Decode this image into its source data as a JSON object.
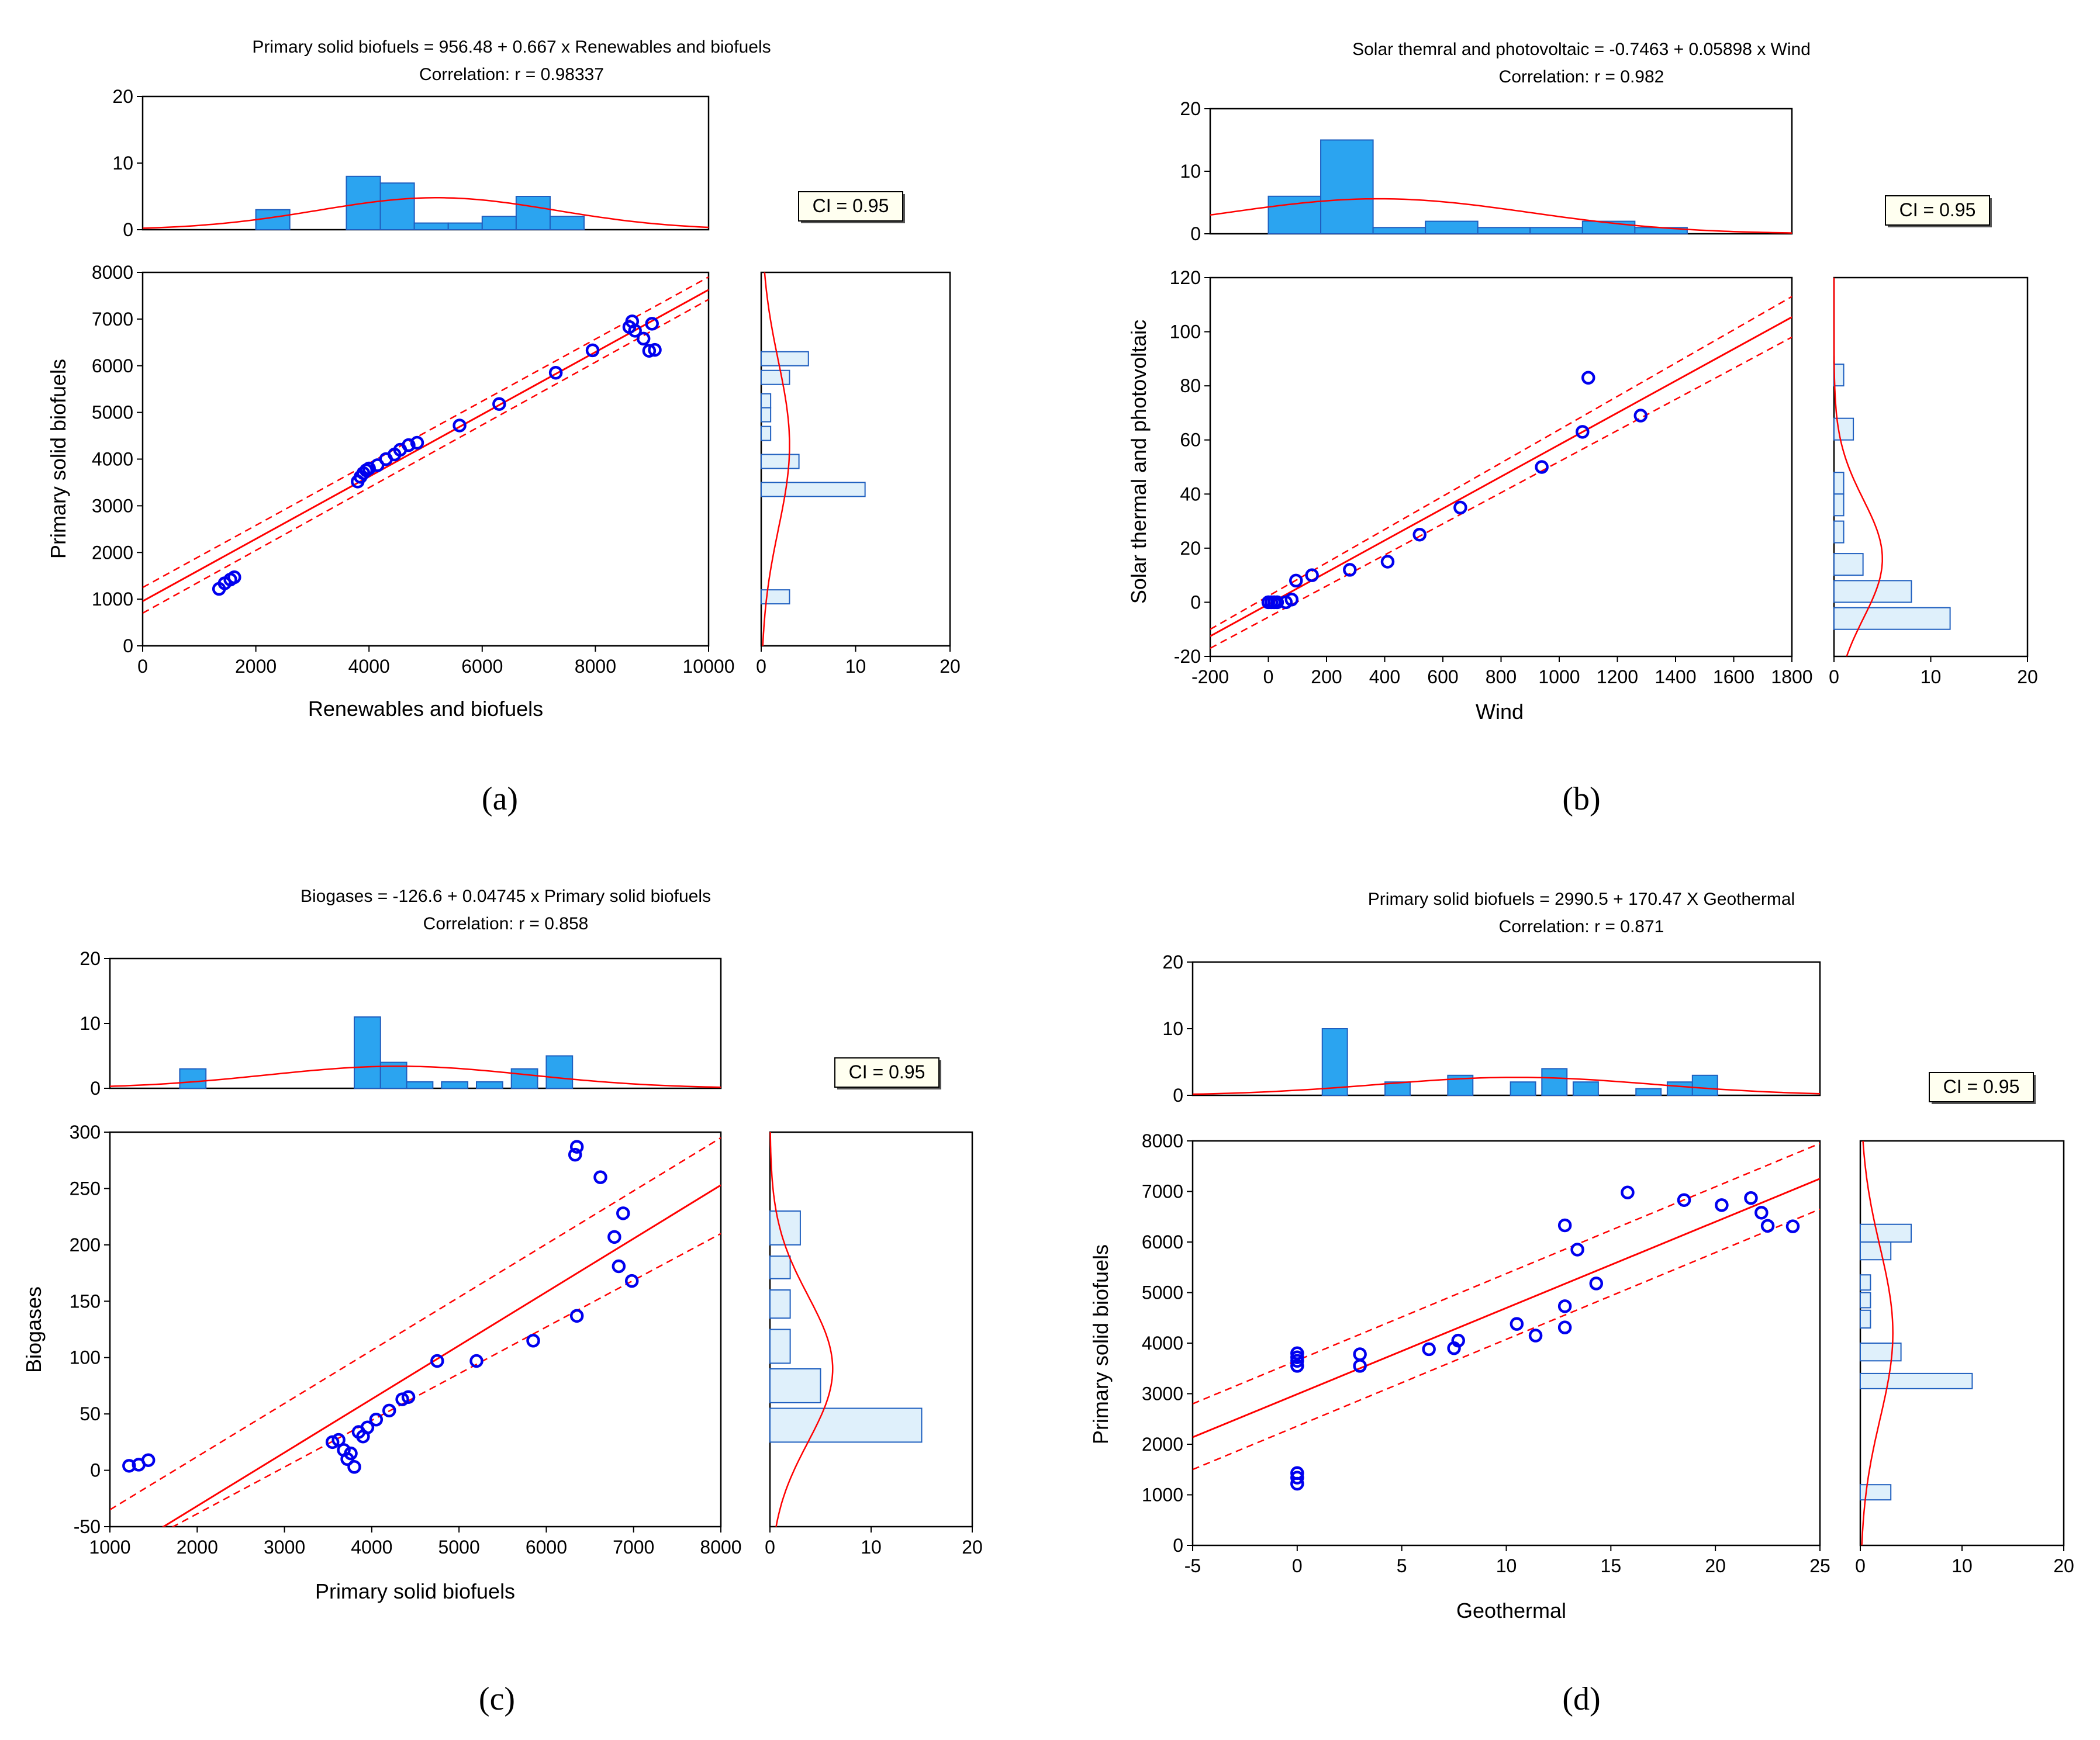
{
  "figure": {
    "colors": {
      "marker": "#0000ee",
      "fit_line": "#ff0000",
      "bar_fill_top": "#2ba4f0",
      "bar_fill_side": "#dff0fb",
      "bar_stroke": "#1f5fbf",
      "axis": "#000000",
      "ci_box_fill": "#fffff0"
    }
  },
  "chart_data": [
    {
      "panel": "(a)",
      "type": "scatter",
      "title": "Primary solid biofuels = 956.48 + 0.667 x Renewables and biofuels",
      "subtitle": "Correlation: r = 0.98337",
      "xlabel": "Renewables and biofuels",
      "ylabel": "Primary solid biofuels",
      "xlim": [
        0,
        10000
      ],
      "ylim": [
        0,
        8000
      ],
      "xticks": [
        0,
        2000,
        4000,
        6000,
        8000,
        10000
      ],
      "yticks": [
        0,
        1000,
        2000,
        3000,
        4000,
        5000,
        6000,
        7000,
        8000
      ],
      "regression": {
        "intercept": 956.48,
        "slope": 0.667,
        "ci_lower": [
          0,
          700
        ],
        "ci_upper": [
          0,
          1250
        ],
        "ci_lower_end": [
          10000,
          7420
        ],
        "ci_upper_end": [
          10000,
          7900
        ]
      },
      "ci_label": "CI = 0.95",
      "points": [
        [
          1350,
          1220
        ],
        [
          1450,
          1340
        ],
        [
          1550,
          1420
        ],
        [
          1620,
          1470
        ],
        [
          3800,
          3520
        ],
        [
          3850,
          3620
        ],
        [
          3900,
          3700
        ],
        [
          3950,
          3760
        ],
        [
          4000,
          3800
        ],
        [
          4150,
          3870
        ],
        [
          4300,
          4000
        ],
        [
          4450,
          4100
        ],
        [
          4550,
          4200
        ],
        [
          4700,
          4300
        ],
        [
          4850,
          4350
        ],
        [
          5600,
          4720
        ],
        [
          6300,
          5180
        ],
        [
          7300,
          5850
        ],
        [
          7950,
          6330
        ],
        [
          8600,
          6830
        ],
        [
          8650,
          6950
        ],
        [
          8700,
          6750
        ],
        [
          8850,
          6580
        ],
        [
          8950,
          6320
        ],
        [
          9050,
          6340
        ],
        [
          9000,
          6900
        ]
      ],
      "top_hist": {
        "yticks": [
          0,
          10,
          20
        ],
        "bins": [
          [
            2000,
            2600,
            3
          ],
          [
            3600,
            4200,
            8
          ],
          [
            4200,
            4800,
            7
          ],
          [
            4800,
            5400,
            1
          ],
          [
            5400,
            6000,
            1
          ],
          [
            6000,
            6600,
            2
          ],
          [
            6600,
            7200,
            5
          ],
          [
            7200,
            7800,
            2
          ]
        ],
        "normal": {
          "mean": 5200,
          "sd": 2100,
          "peak": 4.8
        }
      },
      "side_hist": {
        "xticks": [
          0,
          10,
          20
        ],
        "bins": [
          [
            6000,
            6300,
            5
          ],
          [
            5600,
            5900,
            3
          ],
          [
            5100,
            5400,
            1
          ],
          [
            4800,
            5100,
            1
          ],
          [
            4400,
            4700,
            1
          ],
          [
            3800,
            4100,
            4
          ],
          [
            3200,
            3500,
            11
          ],
          [
            900,
            1200,
            3
          ]
        ],
        "normal": {
          "mean": 4300,
          "sd": 1800,
          "peak": 3.0
        }
      }
    },
    {
      "panel": "(b)",
      "type": "scatter",
      "title": "Solar themral and photovoltaic = -0.7463 + 0.05898 x Wind",
      "subtitle": "Correlation: r = 0.982",
      "xlabel": "Wind",
      "ylabel": "Solar thermal and photovoltaic",
      "xlim": [
        -200,
        1800
      ],
      "ylim": [
        -20,
        120
      ],
      "xticks": [
        -200,
        0,
        200,
        400,
        600,
        800,
        1000,
        1200,
        1400,
        1600,
        1800
      ],
      "yticks": [
        -20,
        0,
        20,
        40,
        60,
        80,
        100,
        120
      ],
      "regression": {
        "intercept": -0.7463,
        "slope": 0.05898,
        "ci_lower": [
          -200,
          -17
        ],
        "ci_upper": [
          -200,
          -10
        ],
        "ci_lower_end": [
          1800,
          98
        ],
        "ci_upper_end": [
          1800,
          113
        ]
      },
      "ci_label": "CI = 0.95",
      "points": [
        [
          0,
          0
        ],
        [
          10,
          0
        ],
        [
          20,
          0
        ],
        [
          30,
          0
        ],
        [
          60,
          0
        ],
        [
          80,
          1
        ],
        [
          95,
          8
        ],
        [
          150,
          10
        ],
        [
          280,
          12
        ],
        [
          410,
          15
        ],
        [
          520,
          25
        ],
        [
          660,
          35
        ],
        [
          940,
          50
        ],
        [
          1080,
          63
        ],
        [
          1100,
          83
        ],
        [
          1280,
          69
        ]
      ],
      "top_hist": {
        "yticks": [
          0,
          10,
          20
        ],
        "bins": [
          [
            0,
            180,
            6
          ],
          [
            180,
            360,
            15
          ],
          [
            360,
            540,
            1
          ],
          [
            540,
            720,
            2
          ],
          [
            720,
            900,
            1
          ],
          [
            900,
            1080,
            1
          ],
          [
            1080,
            1260,
            2
          ],
          [
            1260,
            1440,
            1
          ]
        ],
        "normal": {
          "mean": 380,
          "sd": 520,
          "peak": 5.6
        }
      },
      "side_hist": {
        "xticks": [
          0,
          10,
          20
        ],
        "bins": [
          [
            80,
            88,
            1
          ],
          [
            60,
            68,
            2
          ],
          [
            40,
            48,
            1
          ],
          [
            32,
            40,
            1
          ],
          [
            22,
            30,
            1
          ],
          [
            10,
            18,
            3
          ],
          [
            0,
            8,
            8
          ],
          [
            -10,
            -2,
            12
          ]
        ],
        "normal": {
          "mean": 16,
          "sd": 22,
          "peak": 5.0
        }
      }
    },
    {
      "panel": "(c)",
      "type": "scatter",
      "title": "Biogases = -126.6 + 0.04745 x Primary solid biofuels",
      "subtitle": "Correlation: r = 0.858",
      "xlabel": "Primary solid biofuels",
      "ylabel": "Biogases",
      "xlim": [
        1000,
        8000
      ],
      "ylim": [
        -50,
        300
      ],
      "xticks": [
        1000,
        2000,
        3000,
        4000,
        5000,
        6000,
        7000,
        8000
      ],
      "yticks": [
        -50,
        0,
        50,
        100,
        150,
        200,
        250,
        300
      ],
      "regression": {
        "intercept": -126.6,
        "slope": 0.04745,
        "ci_lower": [
          1000,
          -80
        ],
        "ci_upper": [
          1000,
          -35
        ],
        "ci_lower_end": [
          8000,
          210
        ],
        "ci_upper_end": [
          8000,
          295
        ]
      },
      "ci_label": "CI = 0.95",
      "points": [
        [
          1220,
          4
        ],
        [
          1330,
          5
        ],
        [
          1440,
          9
        ],
        [
          3550,
          25
        ],
        [
          3620,
          27
        ],
        [
          3680,
          18
        ],
        [
          3720,
          10
        ],
        [
          3760,
          15
        ],
        [
          3800,
          3
        ],
        [
          3850,
          34
        ],
        [
          3900,
          30
        ],
        [
          3950,
          38
        ],
        [
          4050,
          45
        ],
        [
          4200,
          53
        ],
        [
          4350,
          63
        ],
        [
          4420,
          65
        ],
        [
          4750,
          97
        ],
        [
          5200,
          97
        ],
        [
          5850,
          115
        ],
        [
          6350,
          137
        ],
        [
          6330,
          280
        ],
        [
          6350,
          287
        ],
        [
          6620,
          260
        ],
        [
          6780,
          207
        ],
        [
          6880,
          228
        ],
        [
          6830,
          181
        ],
        [
          6980,
          168
        ]
      ],
      "top_hist": {
        "yticks": [
          0,
          10,
          20
        ],
        "bins": [
          [
            1800,
            2100,
            3
          ],
          [
            3800,
            4100,
            11
          ],
          [
            4100,
            4400,
            4
          ],
          [
            4400,
            4700,
            1
          ],
          [
            4800,
            5100,
            1
          ],
          [
            5200,
            5500,
            1
          ],
          [
            5600,
            5900,
            3
          ],
          [
            6000,
            6300,
            5
          ]
        ],
        "normal": {
          "mean": 4300,
          "sd": 1500,
          "peak": 3.4
        }
      },
      "side_hist": {
        "xticks": [
          0,
          10,
          20
        ],
        "bins": [
          [
            200,
            230,
            3
          ],
          [
            170,
            190,
            2
          ],
          [
            135,
            160,
            2
          ],
          [
            95,
            125,
            2
          ],
          [
            60,
            90,
            5
          ],
          [
            25,
            55,
            15
          ]
        ],
        "normal": {
          "mean": 90,
          "sd": 65,
          "peak": 6.2
        }
      }
    },
    {
      "panel": "(d)",
      "type": "scatter",
      "title": "Primary solid biofuels = 2990.5 + 170.47 X Geothermal",
      "subtitle": "Correlation: r = 0.871",
      "xlabel": "Geothermal",
      "ylabel": "Primary solid biofuels",
      "xlim": [
        -5,
        25
      ],
      "ylim": [
        0,
        8000
      ],
      "xticks": [
        -5,
        0,
        5,
        10,
        15,
        20,
        25
      ],
      "yticks": [
        0,
        1000,
        2000,
        3000,
        4000,
        5000,
        6000,
        7000,
        8000
      ],
      "regression": {
        "intercept": 2990.5,
        "slope": 170.47,
        "ci_lower": [
          -5,
          1500
        ],
        "ci_upper": [
          -5,
          2800
        ],
        "ci_lower_end": [
          25,
          6650
        ],
        "ci_upper_end": [
          25,
          7950
        ]
      },
      "ci_label": "CI = 0.95",
      "points": [
        [
          0,
          1220
        ],
        [
          0,
          1340
        ],
        [
          0,
          1430
        ],
        [
          0,
          3550
        ],
        [
          0,
          3650
        ],
        [
          0,
          3720
        ],
        [
          0,
          3800
        ],
        [
          3,
          3550
        ],
        [
          3,
          3780
        ],
        [
          6.3,
          3880
        ],
        [
          7.5,
          3900
        ],
        [
          7.7,
          4050
        ],
        [
          10.5,
          4380
        ],
        [
          11.4,
          4150
        ],
        [
          12.8,
          4310
        ],
        [
          12.8,
          4730
        ],
        [
          12.8,
          6330
        ],
        [
          13.4,
          5850
        ],
        [
          14.3,
          5180
        ],
        [
          15.8,
          6980
        ],
        [
          18.5,
          6830
        ],
        [
          20.3,
          6730
        ],
        [
          21.7,
          6870
        ],
        [
          22.2,
          6580
        ],
        [
          22.5,
          6320
        ],
        [
          23.7,
          6310
        ]
      ],
      "top_hist": {
        "yticks": [
          0,
          10,
          20
        ],
        "bins": [
          [
            1.2,
            2.4,
            10
          ],
          [
            4.2,
            5.4,
            2
          ],
          [
            7.2,
            8.4,
            3
          ],
          [
            10.2,
            11.4,
            2
          ],
          [
            11.7,
            12.9,
            4
          ],
          [
            13.2,
            14.4,
            2
          ],
          [
            16.2,
            17.4,
            1
          ],
          [
            17.7,
            18.9,
            2
          ],
          [
            18.9,
            20.1,
            3
          ]
        ],
        "normal": {
          "mean": 10.5,
          "sd": 6.6,
          "peak": 2.7
        }
      },
      "side_hist": {
        "xticks": [
          0,
          10,
          20
        ],
        "bins": [
          [
            6000,
            6350,
            5
          ],
          [
            5650,
            6000,
            3
          ],
          [
            5050,
            5350,
            1
          ],
          [
            4700,
            5000,
            1
          ],
          [
            4300,
            4650,
            1
          ],
          [
            3650,
            4000,
            4
          ],
          [
            3100,
            3400,
            11
          ],
          [
            900,
            1200,
            3
          ]
        ],
        "normal": {
          "mean": 4200,
          "sd": 1700,
          "peak": 3.2
        }
      }
    }
  ]
}
